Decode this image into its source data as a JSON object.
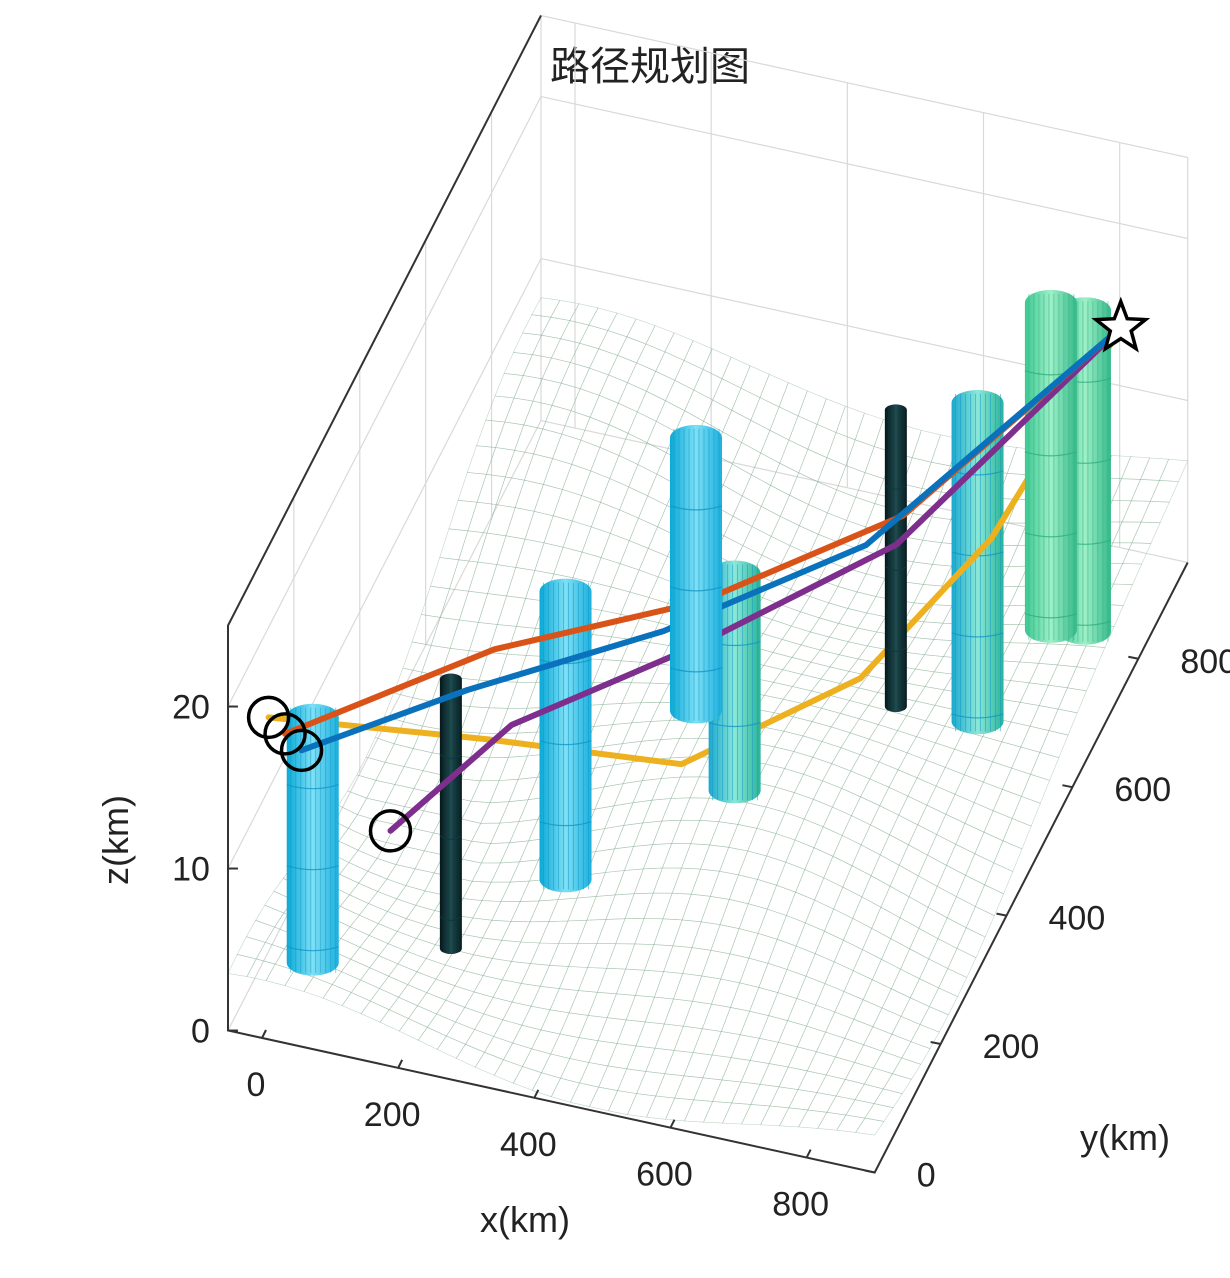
{
  "chart_data": {
    "type": "3d-surface-path",
    "title": "路径规划图",
    "xlabel": "x(km)",
    "ylabel": "y(km)",
    "zlabel": "z(km)",
    "x_ticks": [
      "0",
      "200",
      "400",
      "600",
      "800"
    ],
    "y_ticks": [
      "0",
      "200",
      "400",
      "600",
      "800"
    ],
    "z_ticks": [
      "0",
      "10",
      "20"
    ],
    "xlim": [
      -50,
      900
    ],
    "ylim": [
      0,
      950
    ],
    "zlim": [
      0,
      25
    ],
    "colors": {
      "terrain_low": "#fbf3c4",
      "terrain_high": "#a6d48f",
      "cylinder_cyan": "#4fc8ec",
      "cylinder_green": "#55d8a4",
      "cylinder_dark": "#0d2e33",
      "path_blue": "#0a72bd",
      "path_red": "#d95319",
      "path_purple": "#7e2f8e",
      "path_yellow": "#edb120"
    },
    "goal": {
      "marker": "star",
      "x": 850,
      "y": 850,
      "z": 18
    },
    "starts": [
      {
        "marker": "circle",
        "x": 0,
        "y": 20,
        "z": 19
      },
      {
        "marker": "circle",
        "x": 0,
        "y": 70,
        "z": 16
      },
      {
        "marker": "circle",
        "x": 0,
        "y": 120,
        "z": 13
      },
      {
        "marker": "circle",
        "x": 150,
        "y": 80,
        "z": 11
      }
    ],
    "obstacles": [
      {
        "style": "cyan",
        "x": 60,
        "y": 30,
        "z_top": 20
      },
      {
        "style": "dark",
        "x": 200,
        "y": 160,
        "z_top": 18
      },
      {
        "style": "cyan",
        "x": 320,
        "y": 260,
        "z_top": 21
      },
      {
        "style": "cyan",
        "x": 410,
        "y": 470,
        "z_top": 23
      },
      {
        "style": "cyan-green",
        "x": 520,
        "y": 360,
        "z_top": 20
      },
      {
        "style": "dark",
        "x": 660,
        "y": 560,
        "z_top": 23
      },
      {
        "style": "cyan-green",
        "x": 780,
        "y": 560,
        "z_top": 25
      },
      {
        "style": "green",
        "x": 820,
        "y": 700,
        "z_top": 26
      },
      {
        "style": "green",
        "x": 870,
        "y": 700,
        "z_top": 26
      }
    ],
    "series": [
      {
        "color": "path_blue",
        "points": [
          [
            0,
            120,
            13
          ],
          [
            200,
            210,
            15
          ],
          [
            430,
            330,
            16
          ],
          [
            650,
            490,
            17
          ],
          [
            850,
            850,
            18
          ]
        ]
      },
      {
        "color": "path_red",
        "points": [
          [
            0,
            70,
            16
          ],
          [
            230,
            230,
            17
          ],
          [
            470,
            360,
            17
          ],
          [
            690,
            520,
            18
          ],
          [
            850,
            850,
            18
          ]
        ]
      },
      {
        "color": "path_purple",
        "points": [
          [
            150,
            80,
            11
          ],
          [
            260,
            220,
            13
          ],
          [
            470,
            340,
            15
          ],
          [
            690,
            500,
            17
          ],
          [
            850,
            850,
            18
          ]
        ]
      },
      {
        "color": "path_yellow",
        "points": [
          [
            0,
            20,
            19
          ],
          [
            250,
            170,
            14
          ],
          [
            500,
            240,
            12
          ],
          [
            700,
            370,
            14
          ],
          [
            800,
            560,
            16
          ],
          [
            850,
            850,
            18
          ]
        ]
      }
    ]
  }
}
